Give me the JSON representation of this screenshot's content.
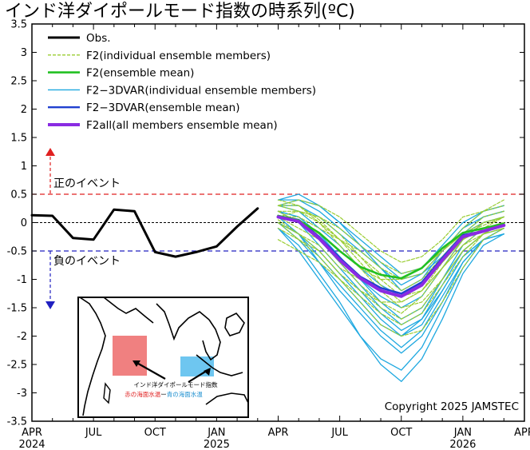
{
  "title": "インド洋ダイポールモード指数の時系列(ºC)",
  "copyright": "Copyright 2025 JAMSTEC",
  "positive_event_label": "正のイベント",
  "negative_event_label": "負のイベント",
  "inset": {
    "title": "インド洋ダイポールモード指数",
    "red_term": "赤の海面水温",
    "minus": "ー",
    "blue_term": "青の海面水温"
  },
  "colors": {
    "obs": "#000000",
    "f2_members": "#9ACD32",
    "f2_mean": "#22C022",
    "f2_3dvar_members": "#1EA8E0",
    "f2_3dvar_mean": "#2040D0",
    "f2all_mean": "#8A2BE2",
    "positive_threshold": "#E02020",
    "negative_threshold": "#2020C0",
    "red_box": "#F08080",
    "blue_box": "#6EC6F0"
  },
  "chart_data": {
    "type": "line",
    "title": "インド洋ダイポールモード指数の時系列(ºC)",
    "x_tick_labels": [
      {
        "month": "APR",
        "year": "2024"
      },
      {
        "month": "JUL",
        "year": ""
      },
      {
        "month": "OCT",
        "year": ""
      },
      {
        "month": "JAN",
        "year": "2025"
      },
      {
        "month": "APR",
        "year": ""
      },
      {
        "month": "JUL",
        "year": ""
      },
      {
        "month": "OCT",
        "year": ""
      },
      {
        "month": "JAN",
        "year": "2026"
      },
      {
        "month": "APR",
        "year": ""
      }
    ],
    "xlim": [
      "2024-04",
      "2026-04"
    ],
    "ylim": [
      -3.5,
      3.5
    ],
    "y_ticks": [
      3.5,
      3,
      2.5,
      2,
      1.5,
      1,
      0.5,
      0,
      -0.5,
      -1,
      -1.5,
      -2,
      -2.5,
      -3,
      -3.5
    ],
    "y_tick_labels": [
      "3.5",
      "3",
      "2.5",
      "2",
      "1.5",
      "1",
      "0.5",
      "0",
      "-0.5",
      "-1",
      "-1.5",
      "-2",
      "-2.5",
      "-3",
      "-3.5"
    ],
    "thresholds": [
      0.5,
      -0.5
    ],
    "legend_position": "top-left",
    "legend": [
      {
        "key": "obs",
        "label": "Obs."
      },
      {
        "key": "f2_members",
        "label": "F2(individual ensemble members)"
      },
      {
        "key": "f2_mean",
        "label": "F2(ensemble mean)"
      },
      {
        "key": "f2_3dvar_members",
        "label": "F2−3DVAR(individual ensemble members)"
      },
      {
        "key": "f2_3dvar_mean",
        "label": "F2−3DVAR(ensemble mean)"
      },
      {
        "key": "f2all_mean",
        "label": "F2all(all members ensemble mean)"
      }
    ],
    "observed": {
      "x": [
        "2024-04",
        "2024-05",
        "2024-06",
        "2024-07",
        "2024-08",
        "2024-09",
        "2024-10",
        "2024-11",
        "2024-12",
        "2025-01",
        "2025-02",
        "2025-03"
      ],
      "y": [
        0.13,
        0.12,
        -0.27,
        -0.3,
        0.23,
        0.2,
        -0.52,
        -0.6,
        -0.52,
        -0.42,
        -0.07,
        0.25
      ]
    },
    "forecast_months": [
      "2025-04",
      "2025-05",
      "2025-06",
      "2025-07",
      "2025-08",
      "2025-09",
      "2025-10",
      "2025-11",
      "2025-12",
      "2026-01",
      "2026-02",
      "2026-03"
    ],
    "f2_members": [
      [
        0.3,
        0.3,
        0.05,
        -0.3,
        -0.7,
        -1.1,
        -1.4,
        -1.2,
        -0.7,
        -0.3,
        -0.1,
        0.0
      ],
      [
        0.1,
        0.2,
        0.1,
        -0.1,
        -0.4,
        -0.7,
        -0.9,
        -0.8,
        -0.5,
        -0.2,
        -0.05,
        0.1
      ],
      [
        0.05,
        -0.2,
        -0.5,
        -0.9,
        -1.2,
        -1.5,
        -1.7,
        -1.5,
        -1.0,
        -0.5,
        -0.2,
        -0.1
      ],
      [
        0.3,
        0.4,
        0.3,
        0.1,
        -0.2,
        -0.5,
        -0.7,
        -0.6,
        -0.3,
        0.1,
        0.2,
        0.3
      ],
      [
        0.0,
        -0.3,
        -0.6,
        -1.0,
        -1.4,
        -1.8,
        -2.0,
        -1.9,
        -1.4,
        -0.8,
        -0.3,
        -0.1
      ],
      [
        0.2,
        0.0,
        -0.2,
        -0.5,
        -0.8,
        -1.0,
        -1.0,
        -0.8,
        -0.5,
        -0.2,
        0.0,
        0.1
      ],
      [
        0.3,
        0.2,
        0.0,
        -0.4,
        -0.8,
        -1.2,
        -1.5,
        -1.4,
        -1.0,
        -0.5,
        -0.2,
        0.0
      ],
      [
        0.1,
        0.1,
        -0.1,
        -0.3,
        -0.6,
        -0.9,
        -1.2,
        -1.0,
        -0.6,
        -0.2,
        0.1,
        0.2
      ],
      [
        -0.3,
        -0.5,
        -0.7,
        -1.0,
        -1.3,
        -1.6,
        -1.8,
        -1.6,
        -1.1,
        -0.6,
        -0.2,
        0.0
      ],
      [
        0.1,
        -0.1,
        -0.3,
        -0.7,
        -1.1,
        -1.4,
        -1.6,
        -1.3,
        -0.8,
        -0.3,
        0.0,
        0.1
      ],
      [
        0.4,
        0.3,
        0.0,
        -0.3,
        -0.5,
        -0.8,
        -1.0,
        -0.9,
        -0.5,
        -0.1,
        0.2,
        0.4
      ],
      [
        0.0,
        -0.2,
        -0.4,
        -0.8,
        -1.0,
        -1.2,
        -1.3,
        -1.1,
        -0.7,
        -0.3,
        -0.1,
        0.0
      ],
      [
        0.2,
        0.2,
        0.1,
        -0.2,
        -0.6,
        -1.0,
        -1.3,
        -1.2,
        -0.8,
        -0.4,
        -0.1,
        0.1
      ],
      [
        -0.1,
        -0.3,
        -0.5,
        -0.9,
        -1.2,
        -1.4,
        -1.4,
        -1.2,
        -0.8,
        -0.4,
        -0.2,
        -0.1
      ]
    ],
    "f2_3dvar_members": [
      [
        0.3,
        0.4,
        0.3,
        0.0,
        -0.4,
        -0.8,
        -1.2,
        -1.0,
        -0.5,
        -0.1,
        0.2,
        0.3
      ],
      [
        0.1,
        -0.2,
        -0.7,
        -1.2,
        -1.6,
        -2.0,
        -2.3,
        -2.0,
        -1.4,
        -0.7,
        -0.3,
        -0.1
      ],
      [
        0.2,
        0.1,
        -0.2,
        -0.6,
        -1.0,
        -1.4,
        -1.7,
        -1.5,
        -1.0,
        -0.5,
        -0.2,
        0.0
      ],
      [
        -0.1,
        -0.4,
        -0.9,
        -1.4,
        -2.0,
        -2.5,
        -2.8,
        -2.4,
        -1.7,
        -0.9,
        -0.4,
        -0.2
      ],
      [
        0.4,
        0.5,
        0.3,
        0.0,
        -0.3,
        -0.6,
        -0.9,
        -0.8,
        -0.4,
        0.0,
        0.2,
        0.3
      ],
      [
        0.0,
        -0.2,
        -0.5,
        -0.9,
        -1.3,
        -1.7,
        -2.0,
        -1.8,
        -1.2,
        -0.6,
        -0.3,
        -0.2
      ],
      [
        0.3,
        0.2,
        -0.1,
        -0.4,
        -0.8,
        -1.1,
        -1.3,
        -1.1,
        -0.6,
        -0.2,
        0.1,
        0.2
      ],
      [
        -0.1,
        -0.5,
        -1.0,
        -1.5,
        -2.0,
        -2.4,
        -2.6,
        -2.2,
        -1.5,
        -0.8,
        -0.3,
        -0.1
      ],
      [
        0.1,
        0.0,
        -0.3,
        -0.7,
        -1.1,
        -1.5,
        -1.8,
        -1.6,
        -1.0,
        -0.4,
        -0.1,
        0.0
      ],
      [
        0.3,
        0.3,
        0.1,
        -0.2,
        -0.5,
        -0.8,
        -1.1,
        -0.9,
        -0.5,
        -0.1,
        0.1,
        0.2
      ],
      [
        0.2,
        0.1,
        -0.2,
        -0.6,
        -1.0,
        -1.3,
        -1.5,
        -1.3,
        -0.8,
        -0.3,
        0.0,
        0.1
      ],
      [
        0.0,
        -0.3,
        -0.7,
        -1.1,
        -1.5,
        -1.9,
        -2.2,
        -1.9,
        -1.3,
        -0.7,
        -0.3,
        -0.2
      ],
      [
        0.4,
        0.4,
        0.2,
        -0.1,
        -0.4,
        -0.7,
        -1.0,
        -0.9,
        -0.6,
        -0.2,
        0.0,
        0.1
      ],
      [
        0.0,
        -0.2,
        -0.6,
        -1.0,
        -1.4,
        -1.8,
        -2.0,
        -1.7,
        -1.1,
        -0.5,
        -0.2,
        -0.1
      ],
      [
        0.2,
        0.0,
        -0.4,
        -0.8,
        -1.2,
        -1.6,
        -1.9,
        -1.7,
        -1.2,
        -0.6,
        -0.3,
        -0.2
      ]
    ],
    "f2_mean": [
      0.12,
      0.04,
      -0.18,
      -0.5,
      -0.78,
      -0.92,
      -0.98,
      -0.8,
      -0.45,
      -0.18,
      -0.1,
      -0.02
    ],
    "f2_3dvar_mean": [
      0.12,
      0.05,
      -0.25,
      -0.62,
      -0.95,
      -1.15,
      -1.25,
      -1.05,
      -0.62,
      -0.22,
      -0.15,
      -0.05
    ],
    "f2all_mean": [
      0.1,
      0.02,
      -0.28,
      -0.66,
      -0.98,
      -1.2,
      -1.3,
      -1.1,
      -0.66,
      -0.25,
      -0.15,
      -0.05
    ]
  }
}
